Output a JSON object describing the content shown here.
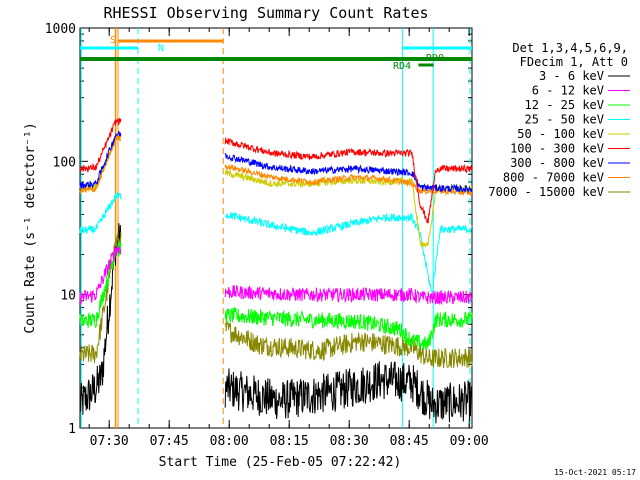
{
  "chart_data": {
    "type": "line",
    "title": "RHESSI Observing Summary Count Rates",
    "xlabel": "Start Time (25-Feb-05 07:22:42)",
    "ylabel": "Count Rate (s⁻¹ detector⁻¹)",
    "yscale": "log",
    "ylim": [
      1,
      1000
    ],
    "xlim_minutes": [
      0,
      98
    ],
    "x_ticks": [
      {
        "label": "07:30",
        "min": 7.3
      },
      {
        "label": "07:45",
        "min": 22.3
      },
      {
        "label": "08:00",
        "min": 37.3
      },
      {
        "label": "08:15",
        "min": 52.3
      },
      {
        "label": "08:30",
        "min": 67.3
      },
      {
        "label": "08:45",
        "min": 82.3
      },
      {
        "label": "09:00",
        "min": 97.3
      }
    ],
    "y_ticks": [
      {
        "label": "1",
        "v": 1
      },
      {
        "label": "10",
        "v": 10
      },
      {
        "label": "100",
        "v": 100
      },
      {
        "label": "1000",
        "v": 1000
      }
    ],
    "legend_header": [
      "Det 1,3,4,5,6,9,",
      "FDecim 1, Att 0"
    ],
    "legend_position": "right",
    "footer_date": "15-Oct-2021 05:17",
    "series": [
      {
        "name": "3 - 6 keV",
        "color": "#000000"
      },
      {
        "name": "6 - 12 keV",
        "color": "#ff00ff"
      },
      {
        "name": "12 - 25 keV",
        "color": "#00ff00"
      },
      {
        "name": "25 - 50 keV",
        "color": "#00ffff"
      },
      {
        "name": "50 - 100 keV",
        "color": "#cccc00"
      },
      {
        "name": "100 - 300 keV",
        "color": "#ff0000"
      },
      {
        "name": "300 - 800 keV",
        "color": "#0000ff"
      },
      {
        "name": "800 - 7000 keV",
        "color": "#ff8800"
      },
      {
        "name": "7000 - 15000 keV",
        "color": "#888800"
      }
    ],
    "bar_labels": [
      {
        "id": "saa",
        "text": "S",
        "color": "#ff8800"
      },
      {
        "id": "night",
        "text": "N",
        "color": "#00ffff"
      },
      {
        "id": "rd0",
        "text": "RD0",
        "color": "#008800"
      },
      {
        "id": "rd4",
        "text": "RD4",
        "color": "#008800"
      }
    ]
  }
}
